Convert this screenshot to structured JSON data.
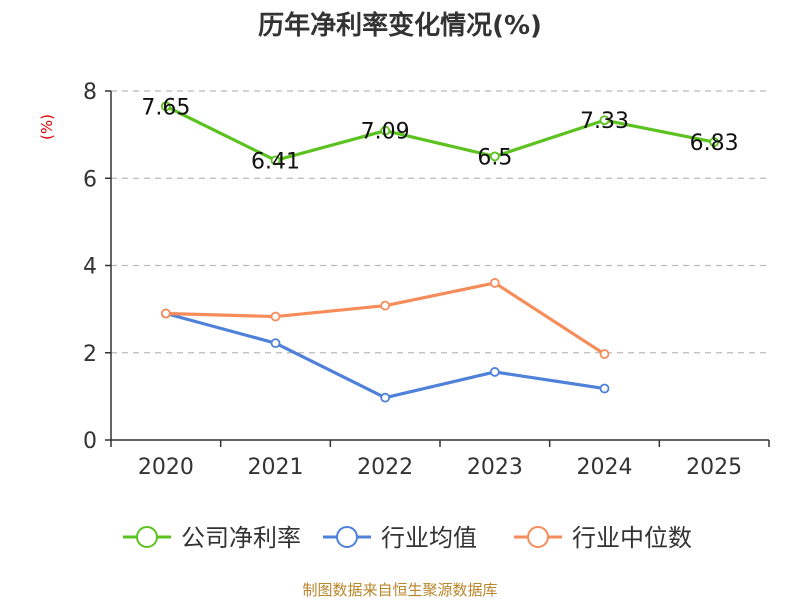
{
  "source_note": "制图数据来自恒生聚源数据库",
  "colors": {
    "source_note": "#b8862b",
    "ylabel": "#dd0000",
    "grid": "#bbbbbb",
    "axis": "#333333"
  },
  "chart_data": {
    "type": "line",
    "title": "历年净利率变化情况(%)",
    "xlabel": "",
    "ylabel": "(%)",
    "categories": [
      "2020",
      "2021",
      "2022",
      "2023",
      "2024",
      "2025"
    ],
    "ylim": [
      0,
      8
    ],
    "yticks": [
      0,
      2,
      4,
      6,
      8
    ],
    "grid": true,
    "legend_position": "bottom",
    "series": [
      {
        "name": "公司净利率",
        "color": "#5cc21f",
        "values": [
          7.65,
          6.41,
          7.09,
          6.5,
          7.33,
          6.83
        ],
        "labels": [
          "7.65",
          "6.41",
          "7.09",
          "6.5",
          "7.33",
          "6.83"
        ],
        "show_labels": true
      },
      {
        "name": "行业均值",
        "color": "#4f81da",
        "values": [
          2.9,
          2.22,
          0.97,
          1.56,
          1.18,
          null
        ],
        "show_labels": false
      },
      {
        "name": "行业中位数",
        "color": "#f68c5a",
        "values": [
          2.9,
          2.83,
          3.08,
          3.6,
          1.97,
          null
        ],
        "show_labels": false
      }
    ]
  }
}
